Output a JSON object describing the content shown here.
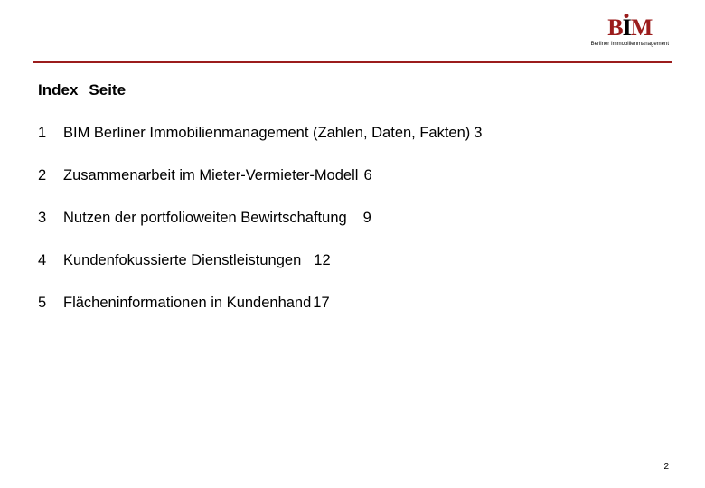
{
  "logo": {
    "letters": {
      "b": "B",
      "i": "I",
      "m": "M"
    },
    "subtitle": "Berliner Immobilienmanagement",
    "colors": {
      "accent": "#9b1c1c",
      "text": "#000000"
    }
  },
  "header": {
    "index_label": "Index",
    "page_label": "Seite"
  },
  "toc": [
    {
      "num": "1",
      "title": "BIM Berliner Immobilienmanagement (Zahlen, Daten, Fakten)",
      "page": "3",
      "page_class": "pg3"
    },
    {
      "num": "2",
      "title": "Zusammenarbeit im Mieter-Vermieter-Modell",
      "page": "6",
      "page_class": "pg6"
    },
    {
      "num": "3",
      "title": "Nutzen der portfolioweiten Bewirtschaftung",
      "page": "9",
      "page_class": "pg9"
    },
    {
      "num": "4",
      "title": "Kundenfokussierte Dienstleistungen",
      "page": "12",
      "page_class": "pg12"
    },
    {
      "num": "5",
      "title": "Flächeninformationen in Kundenhand",
      "page": "17",
      "page_class": "pg17"
    }
  ],
  "page_number": "2",
  "style": {
    "rule_color": "#9b1c1c",
    "font_family": "Verdana, Arial, sans-serif",
    "heading_fontsize_pt": 13,
    "body_fontsize_pt": 12
  }
}
